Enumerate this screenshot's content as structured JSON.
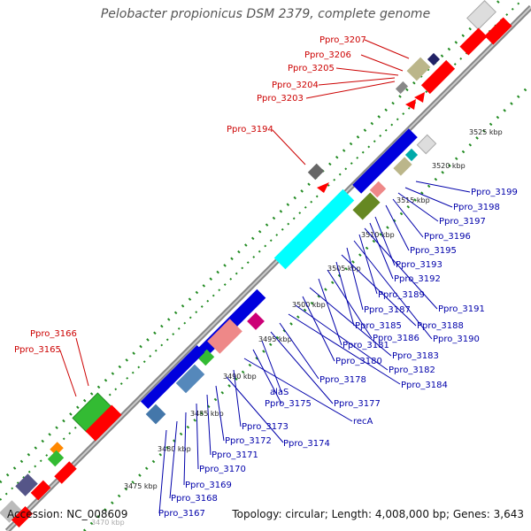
{
  "title": "Pelobacter propionicus DSM 2379, complete genome",
  "accession": "Accession: NC_008609",
  "topology": "Topology: circular; Length: 4,008,000 bp; Genes: 3,643",
  "ticks": [
    "3470 kbp",
    "3475 kbp",
    "3480 kbp",
    "3485 kbp",
    "3490 kbp",
    "3495 kbp",
    "3500 kbp",
    "3505 kbp",
    "3510 kbp",
    "3515 kbp",
    "3520 kbp",
    "3525 kbp"
  ],
  "red_labels": [
    "Ppro_3207",
    "Ppro_3206",
    "Ppro_3205",
    "Ppro_3204",
    "Ppro_3203",
    "Ppro_3194",
    "Ppro_3166",
    "Ppro_3165"
  ],
  "blue_labels": [
    "Ppro_3199",
    "Ppro_3198",
    "Ppro_3197",
    "Ppro_3196",
    "Ppro_3195",
    "Ppro_3193",
    "Ppro_3192",
    "Ppro_3191",
    "Ppro_3189",
    "Ppro_3190",
    "Ppro_3187",
    "Ppro_3188",
    "Ppro_3185",
    "Ppro_3186",
    "Ppro_3181",
    "Ppro_3183",
    "Ppro_3180",
    "Ppro_3182",
    "Ppro_3184",
    "Ppro_3178",
    "Ppro_3177",
    "alaS",
    "Ppro_3175",
    "recA",
    "Ppro_3173",
    "Ppro_3174",
    "Ppro_3172",
    "Ppro_3171",
    "Ppro_3170",
    "Ppro_3169",
    "Ppro_3168",
    "Ppro_3167"
  ],
  "colors": {
    "forward": "#ff0000",
    "reverse": "#0000dd",
    "label_red": "#cc0000",
    "label_blue": "#0000aa",
    "backbone": "#999999",
    "tick": "#228b22"
  }
}
